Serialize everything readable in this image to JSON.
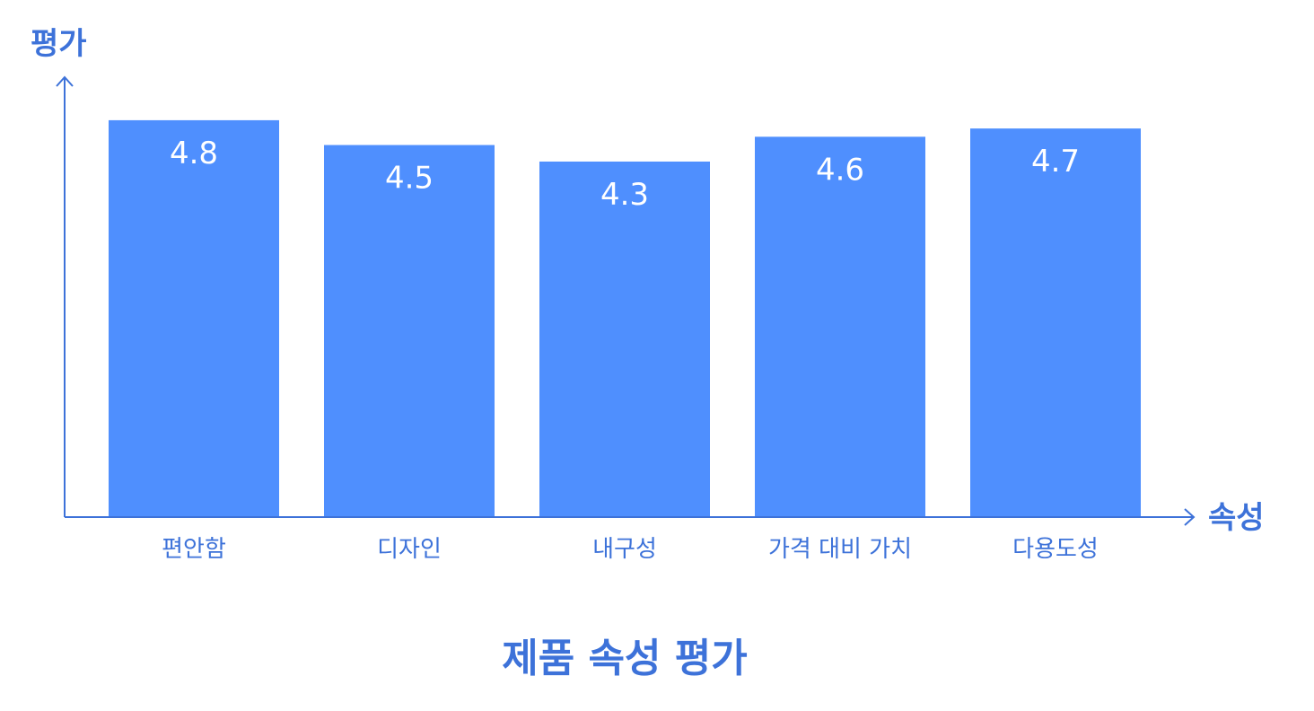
{
  "chart_data": {
    "type": "bar",
    "title": "제품 속성 평가",
    "xlabel": "속성",
    "ylabel": "평가",
    "categories": [
      "편안함",
      "디자인",
      "내구성",
      "가격 대비 가치",
      "다용도성"
    ],
    "values": [
      4.8,
      4.5,
      4.3,
      4.6,
      4.7
    ],
    "data_labels": [
      "4.8",
      "4.5",
      "4.3",
      "4.6",
      "4.7"
    ],
    "ylim": [
      0,
      5.2
    ],
    "grid": false,
    "legend": "none",
    "colors": {
      "bar": "#4f8ffe",
      "axis": "#3d72d9",
      "text": "#3d72d9",
      "data_label": "#ffffff"
    }
  }
}
